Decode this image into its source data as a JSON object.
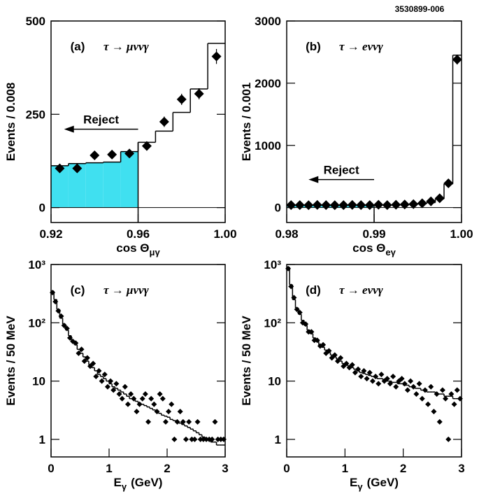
{
  "figure_id": "3530899-006",
  "chart_data": [
    {
      "type": "histogram",
      "title": "(a)",
      "subtitle": "τ → μννγ",
      "xlabel": "cos Θ",
      "xlabel_sub": "μγ",
      "ylabel": "Events / 0.008",
      "xlim": [
        0.92,
        1.0
      ],
      "xticks": [
        0.92,
        0.96,
        {
          "value": 1.0,
          "label": "1.00"
        }
      ],
      "ylim": [
        -40,
        500
      ],
      "yticks": [
        0,
        250,
        500
      ],
      "log": false,
      "bins": [
        0.92,
        0.928,
        0.936,
        0.944,
        0.952,
        0.96,
        0.968,
        0.976,
        0.984,
        0.992,
        1.0
      ],
      "counts": [
        112,
        118,
        120,
        122,
        150,
        175,
        205,
        255,
        318,
        440
      ],
      "points": [
        105,
        105,
        140,
        142,
        145,
        165,
        230,
        290,
        305,
        405
      ],
      "errors": [
        10,
        10,
        10,
        10,
        10,
        12,
        14,
        15,
        15,
        20
      ],
      "fill_to": 0.96,
      "fill_color": "#40e0f0",
      "line_color": "#000000",
      "marker_color": "#000000",
      "annotation": {
        "text": "Reject",
        "x": [
          0.96,
          0.926
        ],
        "y": 210
      }
    },
    {
      "type": "histogram",
      "title": "(b)",
      "subtitle": "τ → eννγ",
      "xlabel": "cos Θ",
      "xlabel_sub": "eγ",
      "ylabel": "Events / 0.001",
      "xlim": [
        0.98,
        1.0
      ],
      "xticks": [
        0.98,
        0.99,
        {
          "value": 1.0,
          "label": "1.00"
        }
      ],
      "ylim": [
        -240,
        3000
      ],
      "yticks": [
        0,
        1000,
        2000,
        3000
      ],
      "log": false,
      "bins": [
        0.98,
        0.981,
        0.982,
        0.983,
        0.984,
        0.985,
        0.986,
        0.987,
        0.988,
        0.989,
        0.99,
        0.991,
        0.992,
        0.993,
        0.994,
        0.995,
        0.996,
        0.997,
        0.998,
        0.999,
        1.0
      ],
      "counts": [
        40,
        40,
        40,
        40,
        40,
        40,
        40,
        40,
        40,
        40,
        42,
        42,
        45,
        45,
        50,
        60,
        80,
        140,
        380,
        2450
      ],
      "points": [
        40,
        40,
        38,
        42,
        40,
        38,
        40,
        42,
        40,
        40,
        45,
        40,
        45,
        50,
        55,
        70,
        100,
        150,
        390,
        2380
      ],
      "errors": [
        10,
        10,
        10,
        10,
        10,
        10,
        10,
        10,
        10,
        10,
        10,
        10,
        10,
        10,
        10,
        12,
        15,
        20,
        30,
        80
      ],
      "fill_to": 0.99,
      "fill_color": "#40e0f0",
      "line_color": "#000000",
      "marker_color": "#000000",
      "annotation": {
        "text": "Reject",
        "x": [
          0.99,
          0.9825
        ],
        "y": 450
      }
    },
    {
      "type": "histogram",
      "title": "(c)",
      "subtitle": "τ → μννγ",
      "xlabel": "E",
      "xlabel_sub": "γ",
      "xlabel_unit": "(GeV)",
      "ylabel": "Events / 50 MeV",
      "xlim": [
        0,
        3
      ],
      "xticks": [
        0,
        1,
        2,
        3
      ],
      "ylim": [
        0.5,
        1000
      ],
      "yticks": [
        1,
        10,
        {
          "value": 100,
          "label": "10²"
        },
        {
          "value": 1000,
          "label": "10³"
        }
      ],
      "log": true,
      "bins": [
        0,
        0.05,
        0.1,
        0.15,
        0.2,
        0.25,
        0.3,
        0.35,
        0.4,
        0.45,
        0.5,
        0.55,
        0.6,
        0.65,
        0.7,
        0.75,
        0.8,
        0.85,
        0.9,
        0.95,
        1.0,
        1.05,
        1.1,
        1.15,
        1.2,
        1.25,
        1.3,
        1.35,
        1.4,
        1.45,
        1.5,
        1.55,
        1.6,
        1.65,
        1.7,
        1.75,
        1.8,
        1.85,
        1.9,
        1.95,
        2.0,
        2.05,
        2.1,
        2.15,
        2.2,
        2.25,
        2.3,
        2.35,
        2.4,
        2.45,
        2.5,
        2.55,
        2.6,
        2.65,
        2.7,
        2.75,
        2.8,
        2.85,
        2.9,
        2.95,
        3.0
      ],
      "counts": [
        350,
        250,
        170,
        120,
        95,
        75,
        60,
        50,
        42,
        35,
        30,
        26,
        22,
        19,
        17,
        15,
        13,
        12,
        11,
        10,
        9,
        8,
        7.5,
        7,
        6.5,
        6,
        5.5,
        5,
        4.8,
        4.5,
        4.2,
        4,
        3.8,
        3.6,
        3.4,
        3.2,
        3,
        2.8,
        2.6,
        2.5,
        2.4,
        2.2,
        2.1,
        2,
        1.9,
        1.8,
        1.7,
        1.6,
        1.5,
        1.4,
        1.3,
        1.2,
        1.1,
        1,
        1,
        0.9,
        0.9,
        0.8,
        0.8,
        0.8
      ],
      "points": [
        330,
        230,
        160,
        130,
        90,
        80,
        55,
        48,
        45,
        30,
        35,
        22,
        25,
        18,
        20,
        12,
        15,
        10,
        13,
        8,
        10,
        7,
        9,
        6,
        5,
        8,
        4,
        6,
        5,
        3,
        4,
        5,
        6,
        2,
        5,
        4,
        3,
        6,
        5,
        2,
        3,
        4,
        1,
        2,
        3,
        2,
        1,
        2,
        1,
        1,
        2,
        1,
        1,
        1,
        1,
        1,
        2,
        1,
        1,
        1
      ],
      "line_color": "#000000",
      "marker_color": "#000000"
    },
    {
      "type": "histogram",
      "title": "(d)",
      "subtitle": "τ → eννγ",
      "xlabel": "E",
      "xlabel_sub": "γ",
      "xlabel_unit": "(GeV)",
      "ylabel": "Events / 50 MeV",
      "xlim": [
        0,
        3
      ],
      "xticks": [
        0,
        1,
        2,
        3
      ],
      "ylim": [
        0.5,
        1000
      ],
      "yticks": [
        1,
        10,
        {
          "value": 100,
          "label": "10²"
        },
        {
          "value": 1000,
          "label": "10³"
        }
      ],
      "log": true,
      "bins": [
        0,
        0.05,
        0.1,
        0.15,
        0.2,
        0.25,
        0.3,
        0.35,
        0.4,
        0.45,
        0.5,
        0.55,
        0.6,
        0.65,
        0.7,
        0.75,
        0.8,
        0.85,
        0.9,
        0.95,
        1.0,
        1.05,
        1.1,
        1.15,
        1.2,
        1.25,
        1.3,
        1.35,
        1.4,
        1.45,
        1.5,
        1.55,
        1.6,
        1.65,
        1.7,
        1.75,
        1.8,
        1.85,
        1.9,
        1.95,
        2.0,
        2.05,
        2.1,
        2.15,
        2.2,
        2.25,
        2.3,
        2.35,
        2.4,
        2.45,
        2.5,
        2.55,
        2.6,
        2.65,
        2.7,
        2.75,
        2.8,
        2.85,
        2.9,
        2.95,
        3.0
      ],
      "counts": [
        900,
        450,
        250,
        180,
        140,
        110,
        90,
        75,
        65,
        55,
        48,
        42,
        38,
        34,
        31,
        28,
        26,
        24,
        22,
        20,
        19,
        18,
        17,
        16,
        15,
        14,
        13.5,
        13,
        12.5,
        12,
        11.5,
        11,
        11,
        10.5,
        10,
        10,
        9.5,
        9.5,
        9,
        9,
        8.5,
        8.5,
        8,
        8,
        7.5,
        7.5,
        7,
        7,
        6.5,
        6.5,
        6.5,
        6,
        6,
        6,
        5.5,
        5.5,
        5.5,
        5,
        5,
        5
      ],
      "points": [
        850,
        420,
        270,
        170,
        150,
        100,
        95,
        70,
        70,
        50,
        50,
        40,
        42,
        30,
        33,
        25,
        28,
        22,
        25,
        18,
        20,
        17,
        19,
        14,
        16,
        12,
        15,
        11,
        14,
        10,
        12,
        9,
        13,
        10,
        11,
        9,
        12,
        8,
        10,
        11,
        9,
        7,
        10,
        8,
        6,
        9,
        5,
        7,
        4,
        8,
        3,
        6,
        2,
        7,
        5,
        1,
        6,
        4,
        7,
        5
      ],
      "line_color": "#000000",
      "marker_color": "#000000"
    }
  ]
}
